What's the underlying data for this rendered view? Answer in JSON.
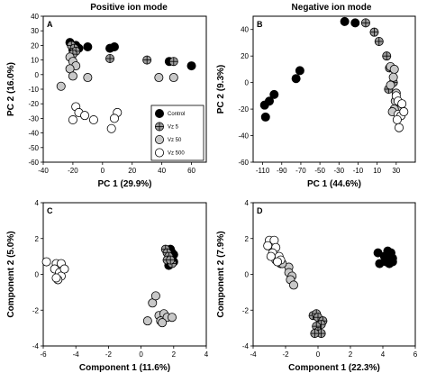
{
  "column_titles": [
    "Positive ion mode",
    "Negative ion mode"
  ],
  "legend": {
    "entries": [
      {
        "label": "Control",
        "style": "black"
      },
      {
        "label": "Vz 5",
        "style": "cross"
      },
      {
        "label": "Vz 50",
        "style": "gray"
      },
      {
        "label": "Vz 500",
        "style": "white"
      }
    ]
  },
  "styles": {
    "black": {
      "fill": "#000000",
      "cross": false
    },
    "cross": {
      "fill": "#9a9a9a",
      "cross": true
    },
    "gray": {
      "fill": "#c8c8c8",
      "cross": false
    },
    "white": {
      "fill": "#ffffff",
      "cross": false
    }
  },
  "chart_data": [
    {
      "id": "A",
      "panel_label": "A",
      "type": "scatter",
      "xlabel": "PC 1 (29.9%)",
      "ylabel": "PC 2 (16.0%)",
      "xlim": [
        -40,
        70
      ],
      "ylim": [
        -60,
        40
      ],
      "xticks": [
        -40,
        -20,
        0,
        20,
        40,
        60
      ],
      "yticks": [
        -60,
        -50,
        -40,
        -30,
        -20,
        -10,
        0,
        10,
        20,
        30,
        40
      ],
      "legend_position": "bottom-right",
      "series": [
        {
          "name": "Control",
          "style": "black",
          "points": [
            [
              -22,
              22
            ],
            [
              -18,
              20
            ],
            [
              -10,
              19
            ],
            [
              -16,
              18
            ],
            [
              -20,
              17
            ],
            [
              5,
              18
            ],
            [
              8,
              19
            ],
            [
              45,
              9
            ],
            [
              60,
              6
            ]
          ]
        },
        {
          "name": "Vz 5",
          "style": "cross",
          "points": [
            [
              -21,
              20
            ],
            [
              -19,
              18
            ],
            [
              -18,
              16
            ],
            [
              -20,
              14
            ],
            [
              5,
              11
            ],
            [
              30,
              10
            ],
            [
              48,
              9
            ]
          ]
        },
        {
          "name": "Vz 50",
          "style": "gray",
          "points": [
            [
              -22,
              12
            ],
            [
              -20,
              9
            ],
            [
              -18,
              6
            ],
            [
              -22,
              4
            ],
            [
              -10,
              -2
            ],
            [
              -20,
              -1
            ],
            [
              -28,
              -8
            ],
            [
              38,
              -2
            ],
            [
              48,
              -2
            ]
          ]
        },
        {
          "name": "Vz 500",
          "style": "white",
          "points": [
            [
              -18,
              -22
            ],
            [
              -16,
              -26
            ],
            [
              -12,
              -28
            ],
            [
              -20,
              -31
            ],
            [
              -6,
              -31
            ],
            [
              10,
              -26
            ],
            [
              8,
              -30
            ],
            [
              6,
              -37
            ]
          ]
        }
      ]
    },
    {
      "id": "B",
      "panel_label": "B",
      "type": "scatter",
      "xlabel": "PC 1 (44.6%)",
      "ylabel": "PC 2 (9.3%)",
      "xlim": [
        -120,
        50
      ],
      "ylim": [
        -60,
        50
      ],
      "xticks": [
        -110,
        -90,
        -70,
        -50,
        -30,
        -10,
        10,
        30
      ],
      "yticks": [
        -60,
        -40,
        -20,
        0,
        20,
        40
      ],
      "series": [
        {
          "name": "Control",
          "style": "black",
          "points": [
            [
              -107,
              -26
            ],
            [
              -108,
              -17
            ],
            [
              -103,
              -14
            ],
            [
              -98,
              -9
            ],
            [
              -75,
              3
            ],
            [
              -71,
              9
            ],
            [
              -24,
              46
            ],
            [
              -13,
              45
            ]
          ]
        },
        {
          "name": "Vz 5",
          "style": "cross",
          "points": [
            [
              -2,
              45
            ],
            [
              7,
              38
            ],
            [
              12,
              31
            ],
            [
              20,
              20
            ],
            [
              23,
              11
            ],
            [
              27,
              0
            ],
            [
              22,
              -5
            ]
          ]
        },
        {
          "name": "Vz 50",
          "style": "gray",
          "points": [
            [
              24,
              12
            ],
            [
              28,
              10
            ],
            [
              27,
              4
            ],
            [
              24,
              -2
            ],
            [
              30,
              -8
            ],
            [
              29,
              -14
            ],
            [
              34,
              -20
            ],
            [
              28,
              -20
            ],
            [
              26,
              -22
            ]
          ]
        },
        {
          "name": "Vz 500",
          "style": "white",
          "points": [
            [
              30,
              -10
            ],
            [
              32,
              -14
            ],
            [
              36,
              -16
            ],
            [
              32,
              -24
            ],
            [
              35,
              -25
            ],
            [
              38,
              -22
            ],
            [
              31,
              -28
            ],
            [
              33,
              -34
            ]
          ]
        }
      ]
    },
    {
      "id": "C",
      "panel_label": "C",
      "type": "scatter",
      "xlabel": "Component  1 (11.6%)",
      "ylabel": "Component  2 (5.0%)",
      "xlim": [
        -6,
        4
      ],
      "ylim": [
        -4,
        4
      ],
      "xticks": [
        -6,
        -4,
        -2,
        0,
        2,
        4
      ],
      "yticks": [
        -4,
        -2,
        0,
        2,
        4
      ],
      "series": [
        {
          "name": "Control",
          "style": "black",
          "points": [
            [
              1.8,
              1.4
            ],
            [
              1.9,
              1.2
            ],
            [
              2.0,
              1.1
            ],
            [
              1.9,
              1.0
            ],
            [
              2.0,
              0.7
            ],
            [
              1.7,
              0.5
            ],
            [
              1.8,
              1.3
            ]
          ]
        },
        {
          "name": "Vz 5",
          "style": "cross",
          "points": [
            [
              1.5,
              1.4
            ],
            [
              1.6,
              1.2
            ],
            [
              1.7,
              1.0
            ],
            [
              1.6,
              0.8
            ],
            [
              1.9,
              0.6
            ],
            [
              1.8,
              0.8
            ]
          ]
        },
        {
          "name": "Vz 50",
          "style": "gray",
          "points": [
            [
              0.7,
              -1.6
            ],
            [
              0.9,
              -1.2
            ],
            [
              0.4,
              -2.6
            ],
            [
              1.1,
              -2.3
            ],
            [
              1.4,
              -2.2
            ],
            [
              1.2,
              -2.6
            ],
            [
              1.6,
              -2.4
            ],
            [
              1.9,
              -2.4
            ],
            [
              1.3,
              -2.7
            ]
          ]
        },
        {
          "name": "Vz 500",
          "style": "white",
          "points": [
            [
              -5.8,
              0.7
            ],
            [
              -5.2,
              0.6
            ],
            [
              -4.9,
              0.6
            ],
            [
              -5.3,
              0.3
            ],
            [
              -5.0,
              0.1
            ],
            [
              -4.9,
              -0.1
            ],
            [
              -5.1,
              -0.3
            ],
            [
              -5.2,
              -0.2
            ],
            [
              -4.7,
              0.3
            ]
          ]
        }
      ]
    },
    {
      "id": "D",
      "panel_label": "D",
      "type": "scatter",
      "xlabel": "Component  1 (22.3%)",
      "ylabel": "Component  2 (7.9%)",
      "xlim": [
        -4,
        6
      ],
      "ylim": [
        -4,
        4
      ],
      "xticks": [
        -4,
        -2,
        0,
        2,
        4,
        6
      ],
      "yticks": [
        -4,
        -2,
        0,
        2,
        4
      ],
      "series": [
        {
          "name": "Control",
          "style": "black",
          "points": [
            [
              3.7,
              1.2
            ],
            [
              4.1,
              1.0
            ],
            [
              4.3,
              1.3
            ],
            [
              4.5,
              1.2
            ],
            [
              4.6,
              0.9
            ],
            [
              4.4,
              0.6
            ],
            [
              3.8,
              0.6
            ],
            [
              4.2,
              0.7
            ],
            [
              4.6,
              0.7
            ]
          ]
        },
        {
          "name": "Vz 5",
          "style": "cross",
          "points": [
            [
              -0.3,
              -2.3
            ],
            [
              -0.1,
              -2.2
            ],
            [
              0.0,
              -2.4
            ],
            [
              0.3,
              -2.6
            ],
            [
              0.2,
              -2.8
            ],
            [
              -0.1,
              -2.9
            ],
            [
              0.0,
              -3.2
            ],
            [
              0.2,
              -3.3
            ],
            [
              -0.2,
              -3.3
            ]
          ]
        },
        {
          "name": "Vz 50",
          "style": "gray",
          "points": [
            [
              -2.6,
              0.8
            ],
            [
              -2.3,
              0.6
            ],
            [
              -1.8,
              0.4
            ],
            [
              -1.8,
              0.1
            ],
            [
              -1.6,
              -0.1
            ],
            [
              -1.7,
              -0.3
            ],
            [
              -1.5,
              -0.6
            ],
            [
              -2.2,
              0.6
            ]
          ]
        },
        {
          "name": "Vz 500",
          "style": "white",
          "points": [
            [
              -3.0,
              1.9
            ],
            [
              -2.7,
              1.9
            ],
            [
              -3.1,
              1.6
            ],
            [
              -2.6,
              1.5
            ],
            [
              -2.8,
              1.2
            ],
            [
              -2.4,
              1.0
            ],
            [
              -2.3,
              0.8
            ],
            [
              -2.5,
              0.7
            ],
            [
              -2.9,
              1.0
            ]
          ]
        }
      ]
    }
  ]
}
